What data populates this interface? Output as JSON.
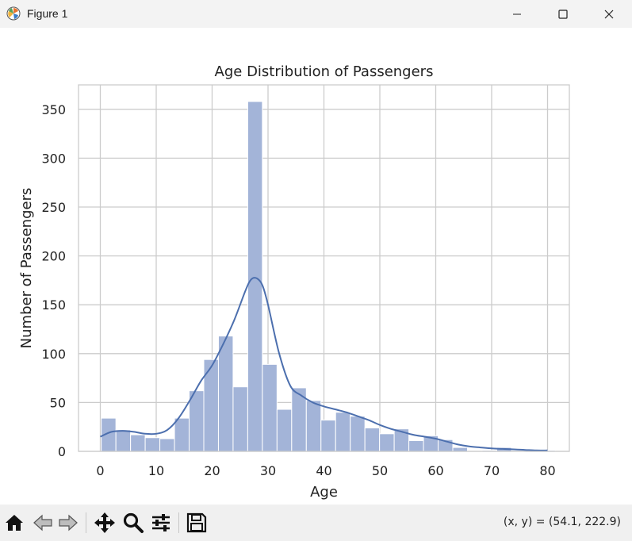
{
  "window": {
    "title": "Figure 1",
    "icons": {
      "app": "matplotlib-icon",
      "minimize": "minimize-icon",
      "maximize": "maximize-icon",
      "close": "close-icon"
    }
  },
  "toolbar": {
    "buttons": [
      {
        "name": "home-button",
        "icon": "home-icon"
      },
      {
        "name": "back-button",
        "icon": "arrow-left-icon"
      },
      {
        "name": "forward-button",
        "icon": "arrow-right-icon"
      },
      {
        "name": "pan-button",
        "icon": "move-icon"
      },
      {
        "name": "zoom-button",
        "icon": "magnifier-icon"
      },
      {
        "name": "configure-subplots-button",
        "icon": "sliders-icon"
      },
      {
        "name": "save-button",
        "icon": "floppy-disk-icon"
      }
    ],
    "coords": "(x, y) = (54.1, 222.9)"
  },
  "chart_data": {
    "type": "bar",
    "title": "Age Distribution of Passengers",
    "xlabel": "Age",
    "ylabel": "Number of Passengers",
    "xlim": [
      -3.9,
      83.9
    ],
    "ylim": [
      0,
      375
    ],
    "grid": true,
    "xticks": [
      0,
      10,
      20,
      30,
      40,
      50,
      60,
      70,
      80
    ],
    "yticks": [
      0,
      50,
      100,
      150,
      200,
      250,
      300,
      350
    ],
    "bin_edges": [
      0.17,
      2.79,
      5.41,
      8.03,
      10.65,
      13.27,
      15.89,
      18.51,
      21.13,
      23.75,
      26.37,
      28.99,
      31.61,
      34.23,
      36.85,
      39.47,
      42.09,
      44.71,
      47.33,
      49.95,
      52.57,
      55.19,
      57.81,
      60.43,
      63.05,
      65.67,
      68.29,
      70.91,
      73.53,
      76.15,
      78.77,
      81.39
    ],
    "counts": [
      34,
      22,
      17,
      14,
      13,
      34,
      62,
      94,
      118,
      66,
      358,
      89,
      43,
      65,
      52,
      32,
      40,
      36,
      24,
      18,
      23,
      11,
      16,
      12,
      4,
      0,
      1,
      4,
      0,
      0,
      1
    ],
    "colors": {
      "bar": "#a3b4d8",
      "kde": "#4c6fae",
      "grid": "#cccccc",
      "spine": "#cccccc"
    },
    "kde": {
      "x": [
        0,
        2,
        4,
        6,
        8,
        10,
        12,
        14,
        16,
        18,
        20,
        22,
        24,
        26,
        27,
        28,
        29,
        30,
        32,
        34,
        36,
        38,
        40,
        42,
        44,
        46,
        48,
        50,
        52,
        54,
        56,
        58,
        60,
        62,
        64,
        66,
        68,
        70,
        72,
        74,
        76,
        78,
        80
      ],
      "y": [
        15,
        20,
        21,
        20,
        18,
        18,
        22,
        34,
        52,
        72,
        88,
        110,
        135,
        165,
        176,
        177,
        170,
        150,
        100,
        67,
        57,
        50,
        46,
        43,
        40,
        36,
        32,
        27,
        23,
        20,
        17,
        15,
        13,
        10,
        7,
        5,
        4,
        3,
        2.5,
        2,
        1.5,
        1,
        1
      ]
    }
  }
}
